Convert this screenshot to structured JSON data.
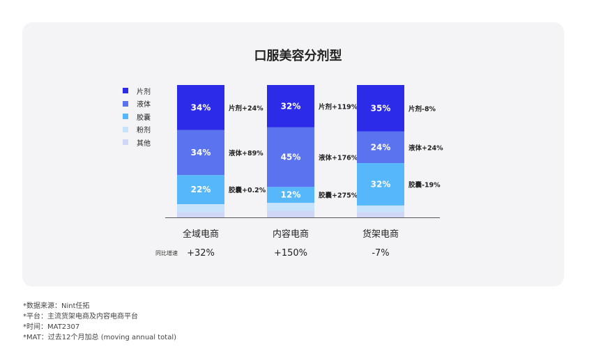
{
  "chart_data": {
    "type": "bar",
    "stacked": true,
    "title": "口服美容分剂型",
    "categories": [
      "全域电商",
      "内容电商",
      "货架电商"
    ],
    "series": [
      {
        "name": "片剂",
        "color": "#2c2ce8",
        "values": [
          34,
          32,
          35
        ],
        "labels": [
          "34%",
          "32%",
          "35%"
        ],
        "changes": [
          "片剂+24%",
          "片剂+119%",
          "片剂-8%"
        ]
      },
      {
        "name": "液体",
        "color": "#5a73ee",
        "values": [
          34,
          45,
          24
        ],
        "labels": [
          "34%",
          "45%",
          "24%"
        ],
        "changes": [
          "液体+89%",
          "液体+176%",
          "液体+24%"
        ]
      },
      {
        "name": "胶囊",
        "color": "#56b8fb",
        "values": [
          22,
          12,
          32
        ],
        "labels": [
          "22%",
          "12%",
          "32%"
        ],
        "changes": [
          "胶囊+0.2%",
          "胶囊+275%",
          "胶囊-19%"
        ]
      },
      {
        "name": "粉剂",
        "color": "#c6e3fb",
        "values": [
          6,
          6,
          5
        ],
        "labels": [
          "",
          "",
          ""
        ],
        "changes": [
          "",
          "",
          ""
        ]
      },
      {
        "name": "其他",
        "color": "#cfd6f6",
        "values": [
          4,
          5,
          4
        ],
        "labels": [
          "",
          "",
          ""
        ],
        "changes": [
          "",
          "",
          ""
        ]
      }
    ],
    "ylim": [
      0,
      100
    ],
    "legend_position": "left",
    "growth_label": "同比增速",
    "growth_values": [
      "+32%",
      "+150%",
      "-7%"
    ]
  },
  "footnotes": [
    "*数据来源：Nint任拓",
    "*平台：主流货架电商及内容电商平台",
    "*时间：MAT2307",
    "*MAT：过去12个月加总 (moving annual total)"
  ]
}
